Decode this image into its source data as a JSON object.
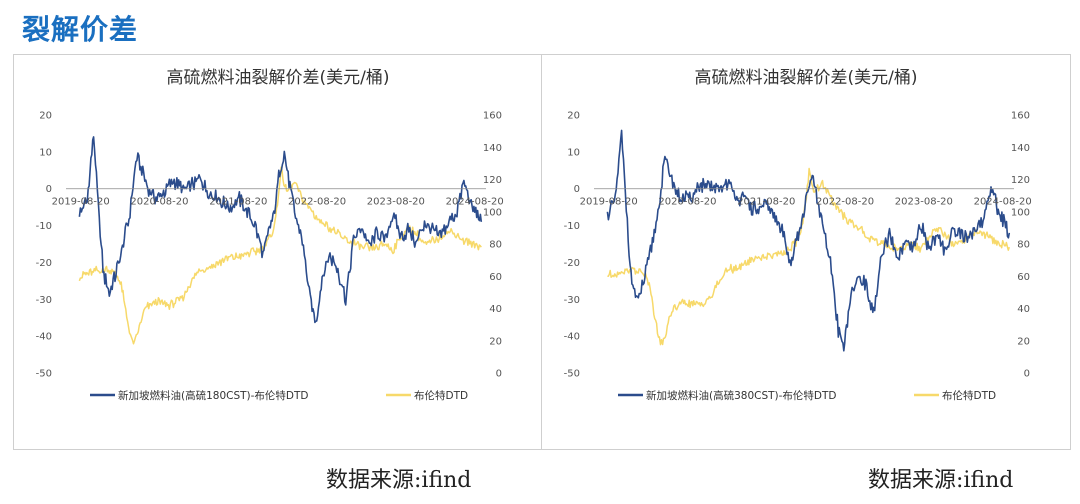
{
  "page": {
    "heading": "裂解价差"
  },
  "colors": {
    "spread": "#2b4c8c",
    "brent": "#f7d96a",
    "heading": "#1a6fc0"
  },
  "sources": [
    "数据来源:ifind",
    "数据来源:ifind"
  ],
  "chart_data": [
    {
      "type": "line",
      "title": "高硫燃料油裂解价差(美元/桶)",
      "y_left": {
        "range": [
          -50,
          20
        ],
        "ticks": [
          "20",
          "10",
          "0",
          "-10",
          "-20",
          "-30",
          "-40",
          "-50"
        ]
      },
      "y_right": {
        "range": [
          0,
          160
        ],
        "ticks": [
          "160",
          "140",
          "120",
          "100",
          "80",
          "60",
          "40",
          "20",
          "0"
        ]
      },
      "x_ticks": [
        "2019-08-20",
        "2020-08-20",
        "2021-08-20",
        "2022-08-20",
        "2023-08-20",
        "2024-08-20"
      ],
      "legend_position": "bottom",
      "series": [
        {
          "name": "新加坡燃料油(高硫180CST)-布伦特DTD",
          "axis": "left",
          "color": "#2b4c8c",
          "x": [
            2019.62,
            2019.72,
            2019.8,
            2019.86,
            2019.92,
            2020.0,
            2020.12,
            2020.25,
            2020.35,
            2020.45,
            2020.5,
            2020.58,
            2020.7,
            2020.8,
            2020.95,
            2021.05,
            2021.15,
            2021.25,
            2021.35,
            2021.45,
            2021.55,
            2021.65,
            2021.75,
            2021.85,
            2021.95,
            2022.02,
            2022.1,
            2022.15,
            2022.22,
            2022.28,
            2022.35,
            2022.45,
            2022.55,
            2022.62,
            2022.7,
            2022.8,
            2022.9,
            2023.0,
            2023.1,
            2023.2,
            2023.3,
            2023.4,
            2023.5,
            2023.6,
            2023.7,
            2023.8,
            2023.9,
            2024.0,
            2024.1,
            2024.2,
            2024.3,
            2024.4,
            2024.5,
            2024.58,
            2024.65,
            2024.72
          ],
          "y": [
            -7,
            -3,
            15,
            -5,
            -22,
            -29,
            -20,
            -8,
            9,
            3,
            0,
            -3,
            -1,
            2,
            0,
            1,
            3,
            -1,
            -2,
            -4,
            -5,
            -3,
            -6,
            -10,
            -18,
            -12,
            -6,
            3,
            10,
            2,
            -6,
            -14,
            -30,
            -37,
            -24,
            -18,
            -22,
            -30,
            -14,
            -10,
            -16,
            -12,
            -14,
            -7,
            -13,
            -11,
            -15,
            -9,
            -11,
            -13,
            -9,
            -7,
            2,
            -4,
            -6,
            -9
          ]
        },
        {
          "name": "布伦特DTD",
          "axis": "right",
          "color": "#f7d96a",
          "x": [
            2019.62,
            2019.75,
            2019.88,
            2020.0,
            2020.08,
            2020.15,
            2020.22,
            2020.28,
            2020.32,
            2020.38,
            2020.45,
            2020.6,
            2020.75,
            2020.85,
            2020.95,
            2021.05,
            2021.15,
            2021.3,
            2021.45,
            2021.55,
            2021.7,
            2021.85,
            2022.0,
            2022.1,
            2022.18,
            2022.25,
            2022.35,
            2022.45,
            2022.55,
            2022.65,
            2022.75,
            2022.85,
            2022.95,
            2023.05,
            2023.2,
            2023.35,
            2023.5,
            2023.6,
            2023.7,
            2023.8,
            2023.9,
            2024.0,
            2024.1,
            2024.2,
            2024.3,
            2024.4,
            2024.5,
            2024.6,
            2024.72
          ],
          "y": [
            60,
            62,
            64,
            64,
            62,
            55,
            35,
            20,
            18,
            28,
            40,
            44,
            42,
            44,
            48,
            58,
            64,
            66,
            70,
            72,
            73,
            75,
            80,
            92,
            125,
            112,
            118,
            108,
            102,
            95,
            92,
            88,
            84,
            82,
            78,
            77,
            80,
            76,
            84,
            90,
            86,
            80,
            82,
            84,
            88,
            86,
            82,
            80,
            78
          ]
        }
      ]
    },
    {
      "type": "line",
      "title": "高硫燃料油裂解价差(美元/桶)",
      "y_left": {
        "range": [
          -50,
          20
        ],
        "ticks": [
          "20",
          "10",
          "0",
          "-10",
          "-20",
          "-30",
          "-40",
          "-50"
        ]
      },
      "y_right": {
        "range": [
          0,
          160
        ],
        "ticks": [
          "160",
          "140",
          "120",
          "100",
          "80",
          "60",
          "40",
          "20",
          "0"
        ]
      },
      "x_ticks": [
        "2019-08-20",
        "2020-08-20",
        "2021-08-20",
        "2022-08-20",
        "2023-08-20",
        "2024-08-20"
      ],
      "legend_position": "bottom",
      "series": [
        {
          "name": "新加坡燃料油(高硫380CST)-布伦特DTD",
          "axis": "left",
          "color": "#2b4c8c",
          "x": [
            2019.62,
            2019.72,
            2019.8,
            2019.86,
            2019.92,
            2020.0,
            2020.12,
            2020.25,
            2020.35,
            2020.45,
            2020.5,
            2020.58,
            2020.7,
            2020.8,
            2020.95,
            2021.05,
            2021.15,
            2021.25,
            2021.35,
            2021.45,
            2021.55,
            2021.65,
            2021.75,
            2021.85,
            2021.95,
            2022.02,
            2022.1,
            2022.15,
            2022.22,
            2022.28,
            2022.35,
            2022.45,
            2022.55,
            2022.62,
            2022.7,
            2022.8,
            2022.9,
            2023.0,
            2023.1,
            2023.2,
            2023.3,
            2023.4,
            2023.5,
            2023.6,
            2023.7,
            2023.8,
            2023.9,
            2024.0,
            2024.1,
            2024.2,
            2024.3,
            2024.4,
            2024.5,
            2024.58,
            2024.65,
            2024.72
          ],
          "y": [
            -7,
            -3,
            15,
            -5,
            -24,
            -31,
            -22,
            -8,
            8,
            2,
            -1,
            -3,
            -2,
            1,
            0,
            0,
            2,
            -2,
            -3,
            -5,
            -6,
            -4,
            -8,
            -12,
            -20,
            -14,
            -8,
            -2,
            4,
            -3,
            -10,
            -20,
            -38,
            -43,
            -30,
            -24,
            -26,
            -34,
            -18,
            -13,
            -19,
            -15,
            -17,
            -10,
            -16,
            -13,
            -17,
            -11,
            -12,
            -14,
            -10,
            -8,
            1,
            -6,
            -9,
            -12
          ]
        },
        {
          "name": "布伦特DTD",
          "axis": "right",
          "color": "#f7d96a",
          "x": [
            2019.62,
            2019.75,
            2019.88,
            2020.0,
            2020.08,
            2020.15,
            2020.22,
            2020.28,
            2020.32,
            2020.38,
            2020.45,
            2020.6,
            2020.75,
            2020.85,
            2020.95,
            2021.05,
            2021.15,
            2021.3,
            2021.45,
            2021.55,
            2021.7,
            2021.85,
            2022.0,
            2022.1,
            2022.18,
            2022.25,
            2022.35,
            2022.45,
            2022.55,
            2022.65,
            2022.75,
            2022.85,
            2022.95,
            2023.05,
            2023.2,
            2023.35,
            2023.5,
            2023.6,
            2023.7,
            2023.8,
            2023.9,
            2024.0,
            2024.1,
            2024.2,
            2024.3,
            2024.4,
            2024.5,
            2024.6,
            2024.72
          ],
          "y": [
            60,
            62,
            64,
            64,
            62,
            55,
            35,
            20,
            18,
            28,
            40,
            44,
            42,
            44,
            48,
            58,
            64,
            66,
            70,
            72,
            73,
            75,
            80,
            92,
            125,
            112,
            118,
            108,
            102,
            95,
            92,
            88,
            84,
            82,
            78,
            77,
            80,
            76,
            84,
            90,
            86,
            80,
            82,
            84,
            88,
            86,
            82,
            80,
            78
          ]
        }
      ]
    }
  ]
}
